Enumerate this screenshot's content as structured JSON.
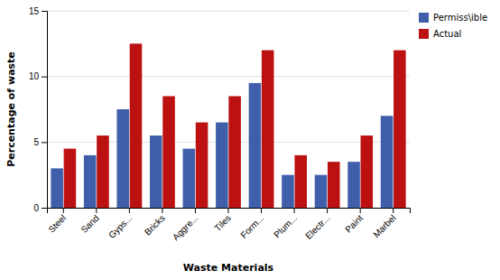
{
  "chart_data": {
    "type": "bar",
    "xlabel": "Waste Materials",
    "ylabel": "Percentage of waste",
    "categories": [
      "Steel",
      "Sand",
      "Gyps...",
      "Bricks",
      "Aggre...",
      "Tiles",
      "Form...",
      "Plum...",
      "Electr...",
      "Paint",
      "Marbel"
    ],
    "series": [
      {
        "name": "Permiss\\ible",
        "color": "#3F5FAA",
        "values": [
          3.0,
          4.0,
          7.5,
          5.5,
          4.5,
          6.5,
          9.5,
          2.5,
          2.5,
          3.5,
          7.0
        ]
      },
      {
        "name": "Actual",
        "color": "#BB1111",
        "values": [
          4.5,
          5.5,
          12.5,
          8.5,
          6.5,
          8.5,
          12.0,
          4.0,
          3.5,
          5.5,
          12.0
        ]
      }
    ],
    "ylim": [
      0,
      15
    ],
    "yticks": [
      0,
      5,
      10,
      15
    ],
    "grid": true,
    "legend": "upper right"
  }
}
